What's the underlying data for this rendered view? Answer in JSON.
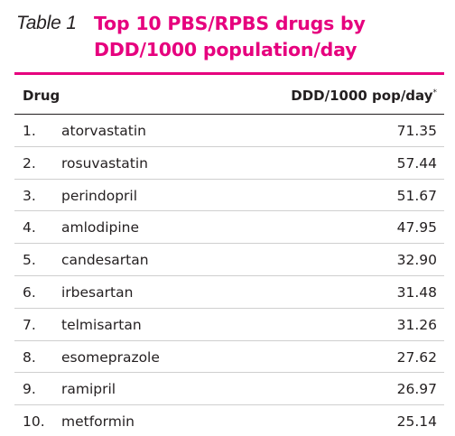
{
  "caption": {
    "label": "Table 1",
    "title": "Top 10 PBS/RPBS drugs by DDD/1000 population/day"
  },
  "table": {
    "headers": {
      "drug": "Drug",
      "value": "DDD/1000 pop/day",
      "value_note": "*"
    },
    "rows": [
      {
        "rank": "1.",
        "name": "atorvastatin",
        "value": "71.35"
      },
      {
        "rank": "2.",
        "name": "rosuvastatin",
        "value": "57.44"
      },
      {
        "rank": "3.",
        "name": "perindopril",
        "value": "51.67"
      },
      {
        "rank": "4.",
        "name": "amlodipine",
        "value": "47.95"
      },
      {
        "rank": "5.",
        "name": "candesartan",
        "value": "32.90"
      },
      {
        "rank": "6.",
        "name": "irbesartan",
        "value": "31.48"
      },
      {
        "rank": "7.",
        "name": "telmisartan",
        "value": "31.26"
      },
      {
        "rank": "8.",
        "name": "esomeprazole",
        "value": "27.62"
      },
      {
        "rank": "9.",
        "name": "ramipril",
        "value": "26.97"
      },
      {
        "rank": "10.",
        "name": "metformin",
        "value": "25.14"
      }
    ]
  },
  "colors": {
    "accent": "#e6007e",
    "text": "#231f20",
    "row_divider": "#cfcfcf"
  }
}
